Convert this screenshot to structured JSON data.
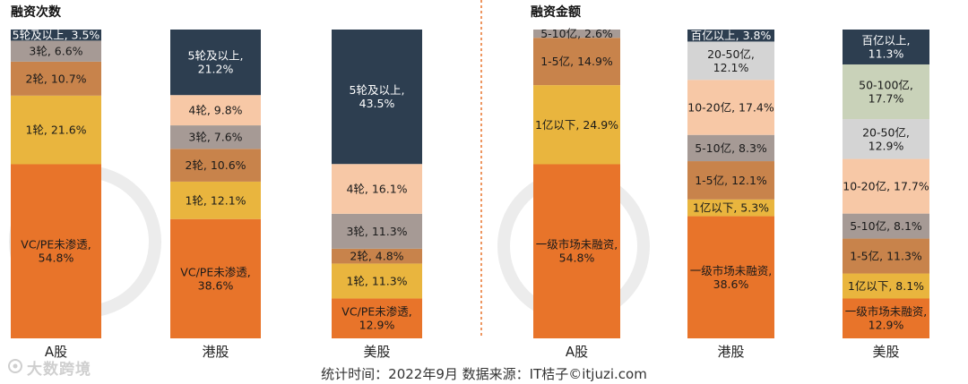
{
  "footer": "统计时间：2022年9月  数据来源：IT桔子©itjuzi.com",
  "brand": "大数跨境",
  "colors": {
    "divider": "#e8732b",
    "watermark": "#ececec"
  },
  "chart_data": [
    {
      "type": "bar",
      "stacked": true,
      "normalized": true,
      "title": "融资次数",
      "categories": [
        "A股",
        "港股",
        "美股"
      ],
      "series": [
        {
          "name": "VC/PE未渗透",
          "values": [
            54.8,
            38.6,
            12.9
          ],
          "color": "#e8742a"
        },
        {
          "name": "1轮",
          "values": [
            21.6,
            12.1,
            11.3
          ],
          "color": "#e9b53e"
        },
        {
          "name": "2轮",
          "values": [
            10.7,
            10.6,
            4.8
          ],
          "color": "#c8834b"
        },
        {
          "name": "3轮",
          "values": [
            6.6,
            7.6,
            11.3
          ],
          "color": "#a69a95"
        },
        {
          "name": "4轮",
          "values": [
            null,
            9.8,
            16.1
          ],
          "color": "#f7c8a6"
        },
        {
          "name": "5轮及以上",
          "values": [
            3.5,
            21.2,
            43.5
          ],
          "color": "#2d3e50"
        }
      ],
      "labels": [
        [
          "VC/PE未渗透,\n54.8%",
          "1轮, 21.6%",
          "2轮, 10.7%",
          "3轮, 6.6%",
          "",
          "5轮及以上, 3.5%"
        ],
        [
          "VC/PE未渗透,\n38.6%",
          "1轮, 12.1%",
          "2轮, 10.6%",
          "3轮, 7.6%",
          "4轮, 9.8%",
          "5轮及以上,\n21.2%"
        ],
        [
          "VC/PE未渗透,\n12.9%",
          "1轮, 11.3%",
          "2轮, 4.8%",
          "3轮, 11.3%",
          "4轮, 16.1%",
          "5轮及以上,\n43.5%"
        ]
      ]
    },
    {
      "type": "bar",
      "stacked": true,
      "normalized": true,
      "title": "融资金额",
      "categories": [
        "A股",
        "港股",
        "美股"
      ],
      "series": [
        {
          "name": "一级市场未融资",
          "values": [
            54.8,
            38.6,
            12.9
          ],
          "color": "#e8742a"
        },
        {
          "name": "1亿以下",
          "values": [
            24.9,
            5.3,
            8.1
          ],
          "color": "#e9b53e"
        },
        {
          "name": "1-5亿",
          "values": [
            14.9,
            12.1,
            11.3
          ],
          "color": "#c8834b"
        },
        {
          "name": "5-10亿",
          "values": [
            2.6,
            8.3,
            8.1
          ],
          "color": "#a69a95"
        },
        {
          "name": "10-20亿",
          "values": [
            null,
            17.4,
            17.7
          ],
          "color": "#f7c8a6"
        },
        {
          "name": "20-50亿",
          "values": [
            null,
            12.1,
            12.9
          ],
          "color": "#d4d4d4"
        },
        {
          "name": "50-100亿",
          "values": [
            null,
            null,
            17.7
          ],
          "color": "#c9d2b9"
        },
        {
          "name": "百亿以上",
          "values": [
            null,
            3.8,
            11.3
          ],
          "color": "#2d3e50"
        }
      ],
      "labels": [
        [
          "一级市场未融资,\n54.8%",
          "1亿以下, 24.9%",
          "1-5亿, 14.9%",
          "5-10亿, 2.6%",
          "",
          "",
          "",
          ""
        ],
        [
          "一级市场未融资,\n38.6%",
          "1亿以下, 5.3%",
          "1-5亿, 12.1%",
          "5-10亿, 8.3%",
          "10-20亿, 17.4%",
          "20-50亿,\n12.1%",
          "",
          "百亿以上, 3.8%"
        ],
        [
          "一级市场未融资,\n12.9%",
          "1亿以下, 8.1%",
          "1-5亿, 11.3%",
          "5-10亿, 8.1%",
          "10-20亿, 17.7%",
          "20-50亿,\n12.9%",
          "50-100亿,\n17.7%",
          "百亿以上,\n11.3%"
        ]
      ]
    }
  ]
}
